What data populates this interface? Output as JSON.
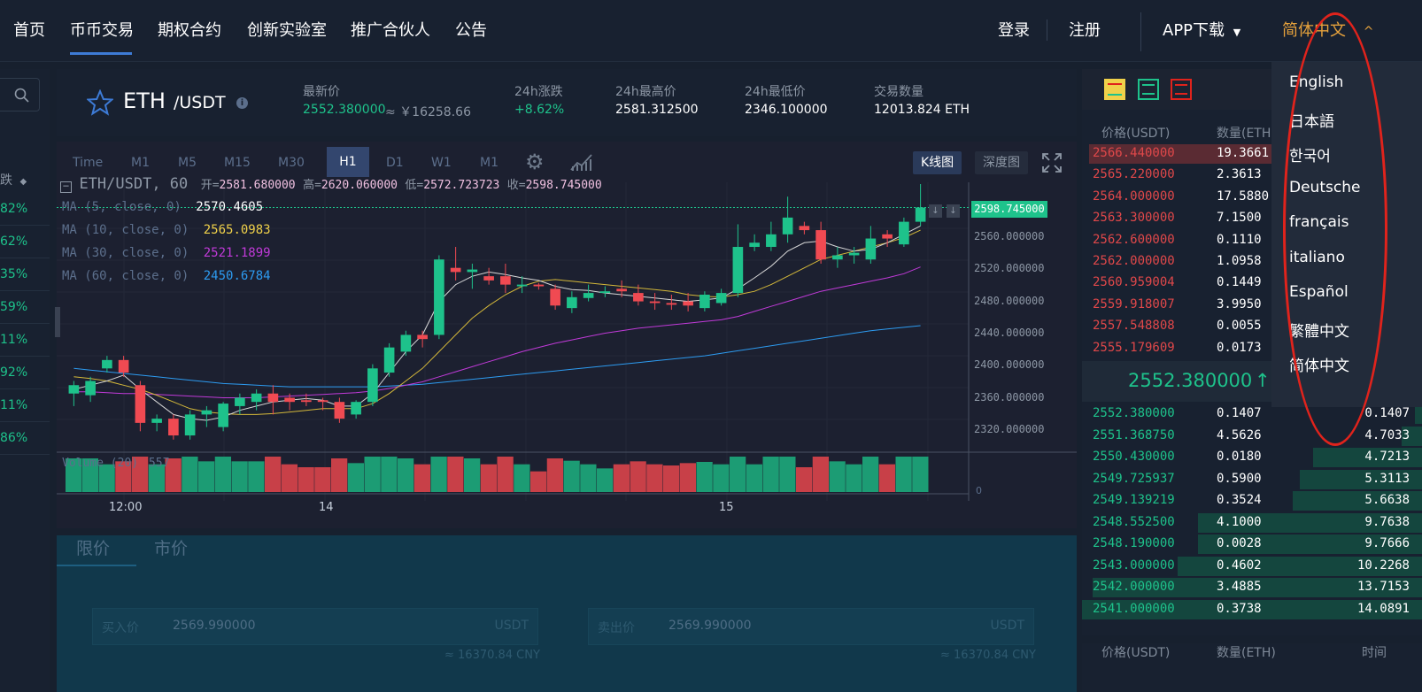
{
  "nav": {
    "items": [
      "首页",
      "币币交易",
      "期权合约",
      "创新实验室",
      "推广合伙人",
      "公告"
    ],
    "login": "登录",
    "register": "注册",
    "app_download": "APP下载",
    "language": "简体中文"
  },
  "language_menu": [
    "English",
    "日本語",
    "한국어",
    "Deutsche",
    "français",
    "italiano",
    "Español",
    "繁體中文",
    "简体中文"
  ],
  "left_column": {
    "header": "涨跌",
    "changes": [
      "82%",
      "62%",
      "35%",
      "59%",
      "11%",
      "92%",
      "11%",
      "86%"
    ]
  },
  "ticker": {
    "base": "ETH",
    "quote": "/USDT",
    "last_price_label": "最新价",
    "last_price": "2552.380000",
    "last_price_cny": "≈ ￥16258.66",
    "change_label": "24h涨跌",
    "change": "+8.62%",
    "high_label": "24h最高价",
    "high": "2581.312500",
    "low_label": "24h最低价",
    "low": "2346.100000",
    "volume_label": "交易数量",
    "volume": "12013.824 ETH"
  },
  "chart": {
    "timeframes": [
      "Time",
      "M1",
      "M5",
      "M15",
      "M30",
      "H1",
      "D1",
      "W1",
      "M1"
    ],
    "active_timeframe": "H1",
    "kline_tab": "K线图",
    "depth_tab": "深度图",
    "symbol_line": "ETH/USDT, 60",
    "open_label": "开=",
    "open": "2581.680000",
    "high_label": "高=",
    "high": "2620.060000",
    "low_label": "低=",
    "low": "2572.723723",
    "close_label": "收=",
    "close": "2598.745000",
    "ma": [
      {
        "label": "MA (5, close, 0)",
        "value": "2570.4605",
        "color": "#ffffff"
      },
      {
        "label": "MA (10, close, 0)",
        "value": "2565.0983",
        "color": "#f0d14a"
      },
      {
        "label": "MA (30, close, 0)",
        "value": "2521.1899",
        "color": "#c03ad8"
      },
      {
        "label": "MA (60, close, 0)",
        "value": "2450.6784",
        "color": "#2d9bf0"
      }
    ],
    "current_price_tag": "2598.745000",
    "y_labels": [
      "2560.000000",
      "2520.000000",
      "2480.000000",
      "2440.000000",
      "2400.000000",
      "2360.000000",
      "2320.000000"
    ],
    "x_labels": [
      "12:00",
      "14",
      "15"
    ],
    "volume_label": "Volume (20)",
    "volume_value": "557",
    "volume_zero": "0"
  },
  "chart_data": {
    "type": "candlestick",
    "y_range": [
      2300,
      2620
    ],
    "candles": [
      [
        2370,
        2380,
        2355,
        2385
      ],
      [
        2368,
        2385,
        2360,
        2390
      ],
      [
        2400,
        2410,
        2395,
        2415
      ],
      [
        2410,
        2395,
        2390,
        2415
      ],
      [
        2380,
        2335,
        2325,
        2385
      ],
      [
        2335,
        2340,
        2325,
        2345
      ],
      [
        2340,
        2320,
        2315,
        2345
      ],
      [
        2320,
        2345,
        2315,
        2350
      ],
      [
        2345,
        2350,
        2330,
        2355
      ],
      [
        2330,
        2358,
        2325,
        2360
      ],
      [
        2355,
        2365,
        2345,
        2370
      ],
      [
        2360,
        2370,
        2350,
        2375
      ],
      [
        2370,
        2360,
        2345,
        2380
      ],
      [
        2365,
        2360,
        2350,
        2370
      ],
      [
        2362,
        2360,
        2355,
        2370
      ],
      [
        2362,
        2360,
        2350,
        2365
      ],
      [
        2360,
        2340,
        2335,
        2365
      ],
      [
        2345,
        2360,
        2340,
        2362
      ],
      [
        2360,
        2400,
        2355,
        2405
      ],
      [
        2395,
        2425,
        2390,
        2430
      ],
      [
        2420,
        2440,
        2415,
        2445
      ],
      [
        2440,
        2435,
        2425,
        2445
      ],
      [
        2440,
        2530,
        2435,
        2535
      ],
      [
        2520,
        2515,
        2505,
        2545
      ],
      [
        2515,
        2518,
        2495,
        2525
      ],
      [
        2510,
        2505,
        2500,
        2520
      ],
      [
        2510,
        2500,
        2490,
        2525
      ],
      [
        2498,
        2500,
        2490,
        2510
      ],
      [
        2500,
        2498,
        2494,
        2502
      ],
      [
        2495,
        2475,
        2470,
        2500
      ],
      [
        2472,
        2485,
        2466,
        2492
      ],
      [
        2484,
        2490,
        2480,
        2500
      ],
      [
        2490,
        2492,
        2485,
        2498
      ],
      [
        2495,
        2492,
        2485,
        2505
      ],
      [
        2490,
        2480,
        2475,
        2500
      ],
      [
        2480,
        2478,
        2470,
        2490
      ],
      [
        2478,
        2476,
        2470,
        2488
      ],
      [
        2480,
        2475,
        2468,
        2490
      ],
      [
        2472,
        2488,
        2468,
        2492
      ],
      [
        2478,
        2490,
        2475,
        2495
      ],
      [
        2490,
        2545,
        2485,
        2572
      ],
      [
        2545,
        2550,
        2540,
        2560
      ],
      [
        2545,
        2560,
        2540,
        2575
      ],
      [
        2560,
        2580,
        2550,
        2605
      ],
      [
        2570,
        2565,
        2560,
        2575
      ],
      [
        2565,
        2530,
        2525,
        2575
      ],
      [
        2530,
        2535,
        2520,
        2545
      ],
      [
        2535,
        2538,
        2525,
        2545
      ],
      [
        2530,
        2555,
        2525,
        2570
      ],
      [
        2560,
        2555,
        2545,
        2565
      ],
      [
        2548,
        2575,
        2545,
        2580
      ],
      [
        2575,
        2592,
        2570,
        2620
      ]
    ],
    "ma5": [
      2375,
      2380,
      2385,
      2392,
      2375,
      2360,
      2345,
      2340,
      2338,
      2342,
      2350,
      2355,
      2360,
      2362,
      2364,
      2362,
      2355,
      2355,
      2370,
      2395,
      2420,
      2440,
      2480,
      2500,
      2510,
      2515,
      2512,
      2508,
      2505,
      2498,
      2494,
      2493,
      2490,
      2488,
      2486,
      2484,
      2482,
      2480,
      2482,
      2484,
      2495,
      2508,
      2522,
      2540,
      2550,
      2552,
      2545,
      2540,
      2542,
      2550,
      2560,
      2570
    ],
    "ma10": [
      2390,
      2388,
      2385,
      2380,
      2375,
      2368,
      2360,
      2352,
      2348,
      2346,
      2345,
      2345,
      2346,
      2348,
      2350,
      2352,
      2352,
      2352,
      2358,
      2370,
      2385,
      2400,
      2420,
      2440,
      2460,
      2475,
      2488,
      2498,
      2504,
      2506,
      2504,
      2502,
      2500,
      2498,
      2496,
      2494,
      2492,
      2488,
      2486,
      2485,
      2488,
      2492,
      2500,
      2510,
      2520,
      2530,
      2535,
      2540,
      2545,
      2550,
      2556,
      2565
    ],
    "ma30": [
      2372,
      2372,
      2371,
      2370,
      2370,
      2369,
      2368,
      2367,
      2366,
      2365,
      2365,
      2365,
      2366,
      2367,
      2368,
      2369,
      2370,
      2371,
      2373,
      2376,
      2380,
      2384,
      2390,
      2396,
      2402,
      2408,
      2414,
      2420,
      2425,
      2430,
      2434,
      2438,
      2442,
      2445,
      2448,
      2450,
      2452,
      2454,
      2456,
      2458,
      2462,
      2468,
      2474,
      2480,
      2486,
      2492,
      2496,
      2500,
      2504,
      2508,
      2513,
      2521
    ],
    "ma60": [
      2400,
      2398,
      2396,
      2394,
      2392,
      2390,
      2388,
      2386,
      2384,
      2382,
      2381,
      2380,
      2379,
      2378,
      2378,
      2378,
      2378,
      2378,
      2378,
      2379,
      2380,
      2381,
      2383,
      2385,
      2387,
      2389,
      2391,
      2393,
      2395,
      2397,
      2399,
      2401,
      2403,
      2405,
      2407,
      2409,
      2411,
      2413,
      2415,
      2418,
      2421,
      2424,
      2427,
      2430,
      2433,
      2436,
      2439,
      2442,
      2445,
      2447,
      2449,
      2451
    ]
  },
  "trade_form": {
    "tab_limit": "限价",
    "tab_market": "市价",
    "buy_label": "买入价",
    "buy_price": "2569.990000",
    "buy_unit": "USDT",
    "buy_cny": "≈ 16370.84 CNY",
    "sell_label": "卖出价",
    "sell_price": "2569.990000",
    "sell_unit": "USDT",
    "sell_cny": "≈ 16370.84 CNY"
  },
  "order_book": {
    "header_price": "价格(USDT)",
    "header_amount": "数量(ETH)",
    "asks": [
      {
        "price": "2566.440000",
        "amount": "19.3661",
        "fill": 0.98
      },
      {
        "price": "2565.220000",
        "amount": "2.3613",
        "fill": 0.35
      },
      {
        "price": "2564.000000",
        "amount": "17.5880",
        "fill": 0.28
      },
      {
        "price": "2563.300000",
        "amount": "7.1500",
        "fill": 0.1
      },
      {
        "price": "2562.600000",
        "amount": "0.1110",
        "fill": 0.02
      },
      {
        "price": "2562.000000",
        "amount": "1.0958",
        "fill": 0.03
      },
      {
        "price": "2560.959004",
        "amount": "0.1449",
        "fill": 0.02
      },
      {
        "price": "2559.918007",
        "amount": "3.9950",
        "fill": 0.04
      },
      {
        "price": "2557.548808",
        "amount": "0.0055",
        "fill": 0.01
      },
      {
        "price": "2555.179609",
        "amount": "0.0173",
        "fill": 0.01
      }
    ],
    "last_price": "2552.380000",
    "last_arrow": "↑",
    "bids": [
      {
        "price": "2552.380000",
        "amount": "0.1407",
        "total": "0.1407",
        "fill": 0.02
      },
      {
        "price": "2551.368750",
        "amount": "4.5626",
        "total": "4.7033",
        "fill": 0.06
      },
      {
        "price": "2550.430000",
        "amount": "0.0180",
        "total": "4.7213",
        "fill": 0.32
      },
      {
        "price": "2549.725937",
        "amount": "0.5900",
        "total": "5.3113",
        "fill": 0.36
      },
      {
        "price": "2549.139219",
        "amount": "0.3524",
        "total": "5.6638",
        "fill": 0.38
      },
      {
        "price": "2548.552500",
        "amount": "4.1000",
        "total": "9.7638",
        "fill": 0.66
      },
      {
        "price": "2548.190000",
        "amount": "0.0028",
        "total": "9.7666",
        "fill": 0.66
      },
      {
        "price": "2543.000000",
        "amount": "0.4602",
        "total": "10.2268",
        "fill": 0.72
      },
      {
        "price": "2542.000000",
        "amount": "3.4885",
        "total": "13.7153",
        "fill": 0.97
      },
      {
        "price": "2541.000000",
        "amount": "0.3738",
        "total": "14.0891",
        "fill": 1.0
      }
    ]
  },
  "trades": {
    "header_price": "价格(USDT)",
    "header_amount": "数量(ETH)",
    "header_time": "时间"
  }
}
